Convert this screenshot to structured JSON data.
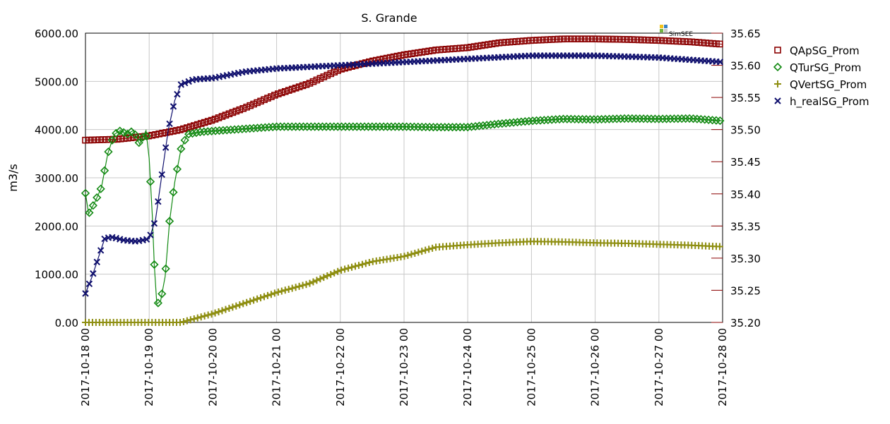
{
  "chart_data": {
    "type": "line",
    "title": "S. Grande",
    "ylabel": "m3/s",
    "y2label": "",
    "xlabel": "",
    "grid": true,
    "legend_position": "right",
    "logo_text": "SimSEE",
    "x_ticks": [
      "2017-10-18 00",
      "2017-10-19 00",
      "2017-10-20 00",
      "2017-10-21 00",
      "2017-10-22 00",
      "2017-10-23 00",
      "2017-10-24 00",
      "2017-10-25 00",
      "2017-10-26 00",
      "2017-10-27 00",
      "2017-10-28 00"
    ],
    "x_range": [
      0,
      10
    ],
    "y_left": {
      "min": 0,
      "max": 6000,
      "ticks": [
        "0.00",
        "1000.00",
        "2000.00",
        "3000.00",
        "4000.00",
        "5000.00",
        "6000.00"
      ]
    },
    "y_right": {
      "min": 35.2,
      "max": 35.65,
      "ticks": [
        "35.20",
        "35.25",
        "35.30",
        "35.35",
        "35.40",
        "35.45",
        "35.50",
        "35.55",
        "35.60",
        "35.65"
      ]
    },
    "colors": {
      "QApSG_Prom": "#8b0000",
      "QTurSG_Prom": "#138a13",
      "QVertSG_Prom": "#8e8e10",
      "h_realSG_Prom": "#10106e"
    },
    "series": [
      {
        "name": "QApSG_Prom",
        "marker": "square",
        "axis": "left",
        "points": [
          [
            0,
            3780
          ],
          [
            0.5,
            3800
          ],
          [
            1,
            3870
          ],
          [
            1.5,
            4000
          ],
          [
            2,
            4200
          ],
          [
            2.5,
            4450
          ],
          [
            3,
            4730
          ],
          [
            3.5,
            4950
          ],
          [
            4,
            5250
          ],
          [
            4.5,
            5420
          ],
          [
            5,
            5550
          ],
          [
            5.5,
            5650
          ],
          [
            6,
            5700
          ],
          [
            6.5,
            5800
          ],
          [
            7,
            5850
          ],
          [
            7.5,
            5880
          ],
          [
            8,
            5880
          ],
          [
            8.5,
            5870
          ],
          [
            9,
            5850
          ],
          [
            9.5,
            5820
          ],
          [
            10,
            5770
          ]
        ]
      },
      {
        "name": "QTurSG_Prom",
        "marker": "diamond",
        "axis": "left",
        "points": [
          [
            0,
            2680
          ],
          [
            0.05,
            2250
          ],
          [
            0.15,
            2500
          ],
          [
            0.25,
            2800
          ],
          [
            0.35,
            3500
          ],
          [
            0.45,
            3900
          ],
          [
            0.55,
            3980
          ],
          [
            0.65,
            3900
          ],
          [
            0.75,
            3980
          ],
          [
            0.85,
            3700
          ],
          [
            0.95,
            3980
          ],
          [
            1.0,
            3400
          ],
          [
            1.05,
            2200
          ],
          [
            1.08,
            1200
          ],
          [
            1.12,
            380
          ],
          [
            1.18,
            450
          ],
          [
            1.25,
            950
          ],
          [
            1.32,
            2100
          ],
          [
            1.4,
            2900
          ],
          [
            1.5,
            3600
          ],
          [
            1.6,
            3900
          ],
          [
            1.8,
            3950
          ],
          [
            2,
            3970
          ],
          [
            3,
            4060
          ],
          [
            4,
            4060
          ],
          [
            5,
            4060
          ],
          [
            5.5,
            4050
          ],
          [
            6,
            4050
          ],
          [
            6.5,
            4120
          ],
          [
            7,
            4180
          ],
          [
            7.5,
            4220
          ],
          [
            8,
            4210
          ],
          [
            8.5,
            4230
          ],
          [
            9,
            4220
          ],
          [
            9.5,
            4230
          ],
          [
            10,
            4180
          ]
        ]
      },
      {
        "name": "QVertSG_Prom",
        "marker": "plus",
        "axis": "left",
        "points": [
          [
            0,
            0
          ],
          [
            1,
            0
          ],
          [
            1.5,
            0
          ],
          [
            2,
            180
          ],
          [
            2.5,
            400
          ],
          [
            3,
            620
          ],
          [
            3.5,
            800
          ],
          [
            4,
            1080
          ],
          [
            4.5,
            1260
          ],
          [
            5,
            1370
          ],
          [
            5.5,
            1560
          ],
          [
            6,
            1610
          ],
          [
            6.5,
            1650
          ],
          [
            7,
            1680
          ],
          [
            7.5,
            1670
          ],
          [
            8,
            1650
          ],
          [
            8.5,
            1640
          ],
          [
            9,
            1620
          ],
          [
            9.5,
            1600
          ],
          [
            10,
            1570
          ]
        ]
      },
      {
        "name": "h_realSG_Prom",
        "marker": "x",
        "axis": "right",
        "points": [
          [
            0,
            35.245
          ],
          [
            0.1,
            35.27
          ],
          [
            0.2,
            35.3
          ],
          [
            0.3,
            35.33
          ],
          [
            0.4,
            35.333
          ],
          [
            0.6,
            35.328
          ],
          [
            0.8,
            35.326
          ],
          [
            1.0,
            35.33
          ],
          [
            1.1,
            35.36
          ],
          [
            1.2,
            35.43
          ],
          [
            1.3,
            35.5
          ],
          [
            1.4,
            35.545
          ],
          [
            1.5,
            35.57
          ],
          [
            1.7,
            35.578
          ],
          [
            2,
            35.58
          ],
          [
            2.5,
            35.59
          ],
          [
            3,
            35.595
          ],
          [
            4,
            35.6
          ],
          [
            5,
            35.605
          ],
          [
            6,
            35.61
          ],
          [
            7,
            35.615
          ],
          [
            8,
            35.615
          ],
          [
            9,
            35.612
          ],
          [
            10,
            35.605
          ]
        ]
      }
    ]
  }
}
